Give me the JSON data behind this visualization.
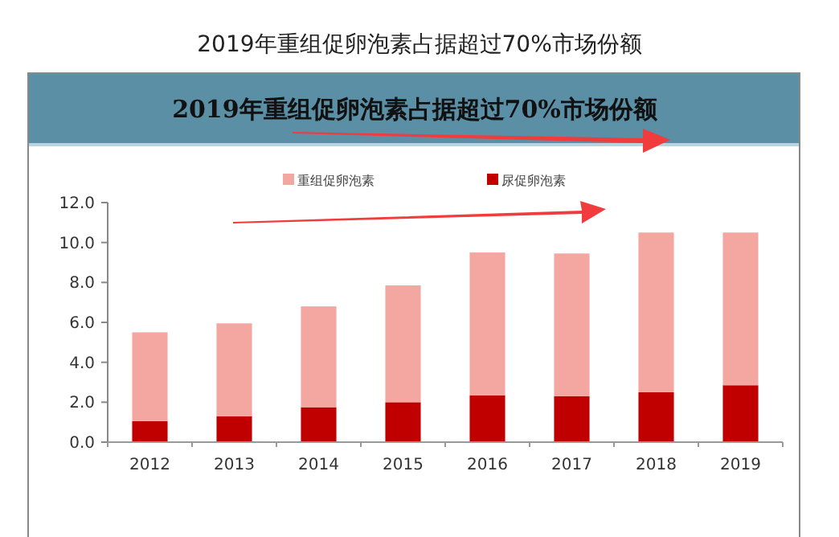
{
  "chart_data": {
    "type": "bar",
    "title": "2019年重组促卵泡素占据超过70%市场份额",
    "subtitle": "2019年重组促卵泡素占据超过70%市场份额",
    "categories": [
      "2012",
      "2013",
      "2014",
      "2015",
      "2016",
      "2017",
      "2018",
      "2019"
    ],
    "stacked": true,
    "series": [
      {
        "name": "尿促卵泡素",
        "color": "#c00000",
        "values": [
          1.05,
          1.3,
          1.75,
          2.0,
          2.35,
          2.3,
          2.5,
          2.85
        ]
      },
      {
        "name": "重组促卵泡素",
        "color": "#f4a7a0",
        "values": [
          4.45,
          4.65,
          5.05,
          5.85,
          7.15,
          7.15,
          8.0,
          7.65
        ]
      }
    ],
    "ylim": [
      0,
      12
    ],
    "yticks": [
      {
        "value": 0,
        "label": "0.0"
      },
      {
        "value": 2,
        "label": "2.0"
      },
      {
        "value": 4,
        "label": "4.0"
      },
      {
        "value": 6,
        "label": "6.0"
      },
      {
        "value": 8,
        "label": "8.0"
      },
      {
        "value": 10,
        "label": "10.0"
      },
      {
        "value": 12,
        "label": "12.0"
      }
    ],
    "grid": false,
    "legend": "top"
  }
}
